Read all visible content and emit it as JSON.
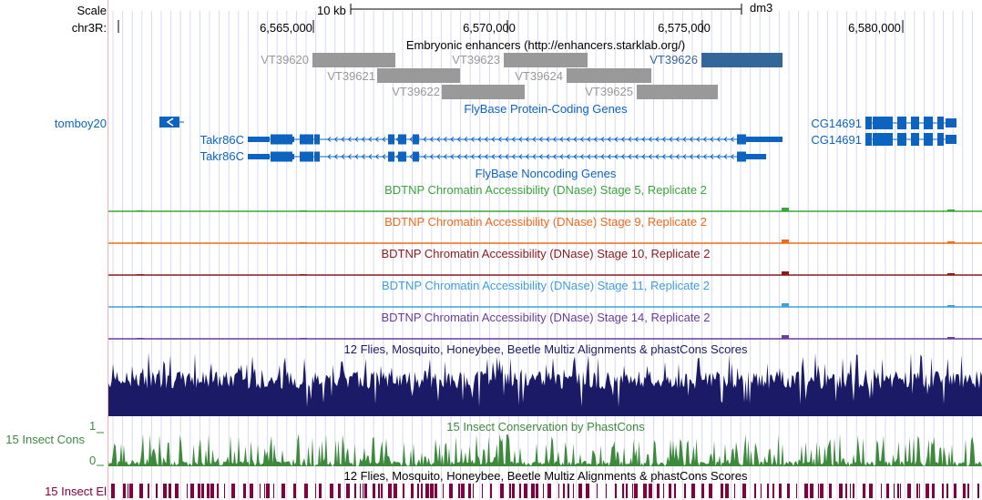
{
  "ruler": {
    "scale_label": "Scale",
    "chrom_label": "chr3R:",
    "scale_bar_label": "10 kb",
    "assembly": "dm3",
    "positions": [
      "6,565,000",
      "6,570,000",
      "6,575,000",
      "6,580,000"
    ]
  },
  "tracks": {
    "enhancers": {
      "title": "Embryonic enhancers (http://enhancers.starklab.org/)",
      "items": [
        {
          "id": "VT39620",
          "color": "#999999"
        },
        {
          "id": "VT39621",
          "color": "#999999"
        },
        {
          "id": "VT39622",
          "color": "#999999"
        },
        {
          "id": "VT39623",
          "color": "#999999"
        },
        {
          "id": "VT39624",
          "color": "#999999"
        },
        {
          "id": "VT39625",
          "color": "#999999"
        },
        {
          "id": "VT39626",
          "color": "#336699"
        }
      ]
    },
    "protein_coding": {
      "title": "FlyBase Protein-Coding Genes",
      "color": "#0c64c0",
      "left_label": "tomboy20",
      "genes": [
        "Takr86C",
        "Takr86C"
      ],
      "right_genes": [
        "CG14691",
        "CG14691"
      ]
    },
    "noncoding": {
      "title": "FlyBase Noncoding Genes",
      "color": "#0c64c0"
    },
    "dnase": [
      {
        "title": "BDTNP Chromatin Accessibility (DNase) Stage 5, Replicate 2",
        "color": "#3aa63a"
      },
      {
        "title": "BDTNP Chromatin Accessibility (DNase) Stage 9, Replicate 2",
        "color": "#ee6b1c"
      },
      {
        "title": "BDTNP Chromatin Accessibility (DNase) Stage 10, Replicate 2",
        "color": "#8b1a1a"
      },
      {
        "title": "BDTNP Chromatin Accessibility (DNase) Stage 11, Replicate 2",
        "color": "#3ea0d8"
      },
      {
        "title": "BDTNP Chromatin Accessibility (DNase) Stage 14, Replicate 2",
        "color": "#6a3d9a"
      }
    ],
    "multiz": {
      "title": "12 Flies, Mosquito, Honeybee, Beetle Multiz Alignments & phastCons Scores",
      "color": "#1a1a66"
    },
    "phastcons": {
      "title": "15 Insect Conservation by PhastCons",
      "left_label": "15 Insect Cons",
      "axis_max": "1",
      "axis_min": "0",
      "color": "#3d8a3d"
    },
    "elements": {
      "title": "12 Flies, Mosquito, Honeybee, Beetle Multiz Alignments & phastCons Scores",
      "left_label": "15 Insect El",
      "color": "#800040"
    }
  }
}
